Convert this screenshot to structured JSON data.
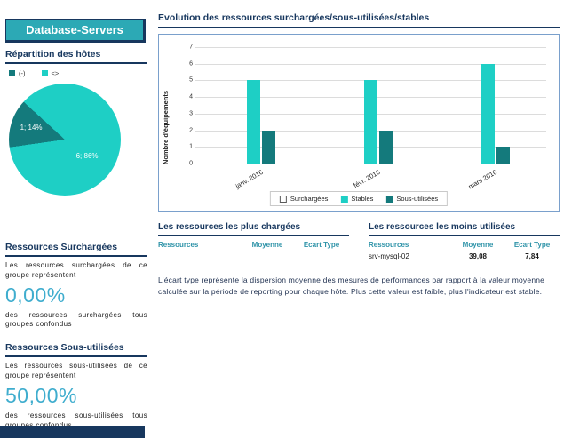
{
  "page": {
    "group_title": "Database-Servers"
  },
  "colors": {
    "header_teal": "#2CA9B5",
    "navy": "#17375E",
    "bright_teal": "#1ECFC5",
    "dark_teal": "#147A7C",
    "value_blue": "#3FADCE",
    "table_header_teal": "#2E93A8"
  },
  "sidebar": {
    "hosts": {
      "title": "Répartition des hôtes",
      "legend": [
        {
          "label": "(-)",
          "color": "#147A7C"
        },
        {
          "label": "<>",
          "color": "#1ECFC5"
        }
      ]
    },
    "overloaded": {
      "title": "Ressources Surchargées",
      "intro": "Les ressources surchargées de ce groupe représentent",
      "value": "0,00%",
      "outro": "des ressources surchargées tous groupes confondus"
    },
    "underused": {
      "title": "Ressources Sous-utilisées",
      "intro": "Les ressources sous-utilisées de ce groupe représentent",
      "value": "50,00%",
      "outro": "des ressources sous-utilisées tous groupes confondus"
    }
  },
  "main": {
    "evolution_title": "Evolution des ressources surchargées/sous-utilisées/stables",
    "most_loaded": {
      "title": "Les ressources les plus chargées",
      "headers": [
        "Ressources",
        "Moyenne",
        "Ecart Type"
      ],
      "rows": []
    },
    "least_used": {
      "title": "Les ressources les moins utilisées",
      "headers": [
        "Ressources",
        "Moyenne",
        "Ecart Type"
      ],
      "rows": [
        [
          "srv-mysql-02",
          "39,08",
          "7,84"
        ]
      ]
    },
    "footnote": "L'écart type représente la dispersion moyenne des mesures de performances par rapport à la valeur moyenne calculée sur la période de reporting pour chaque hôte. Plus cette valeur est faible, plus l'indicateur est stable."
  },
  "chart_data": [
    {
      "type": "pie",
      "title": "Répartition des hôtes",
      "slices": [
        {
          "label": "1; 14%",
          "value": 1,
          "pct": 14,
          "color": "#147A7C"
        },
        {
          "label": "6; 86%",
          "value": 6,
          "pct": 86,
          "color": "#1ECFC5"
        }
      ],
      "start_angle_deg": 262
    },
    {
      "type": "bar",
      "title": "Evolution des ressources surchargées/sous-utilisées/stables",
      "categories": [
        "janv. 2016",
        "févr. 2016",
        "mars 2016"
      ],
      "series": [
        {
          "name": "Surchargées",
          "values": [
            0,
            0,
            0
          ],
          "color": "#FFFFFF",
          "border": "#595959"
        },
        {
          "name": "Stables",
          "values": [
            5,
            5,
            6
          ],
          "color": "#1ECFC5"
        },
        {
          "name": "Sous-utilisées",
          "values": [
            2,
            2,
            1
          ],
          "color": "#147A7C"
        }
      ],
      "ylabel": "Nombre d'équipements",
      "ylim": [
        0,
        7
      ],
      "grid": true,
      "legend_position": "bottom"
    }
  ]
}
